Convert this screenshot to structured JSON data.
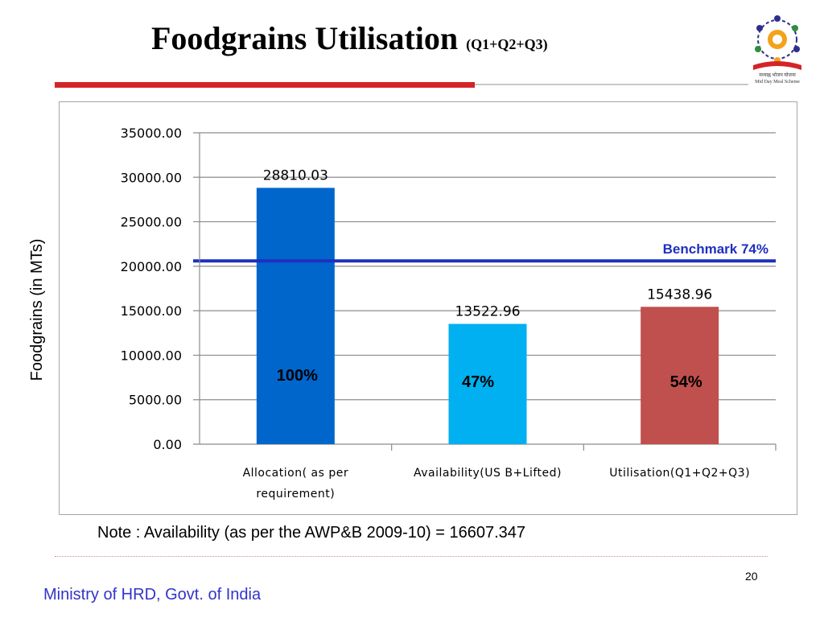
{
  "slide": {
    "title": "Foodgrains Utilisation",
    "title_sub": "(Q1+Q2+Q3)",
    "note": "Note : Availability (as per the AWP&B 2009-10) = 16607.347",
    "page_number": "20",
    "footer": "Ministry of HRD, Govt. of India",
    "logo": {
      "icon": "mid-day-meal-scheme-logo",
      "caption_line1": "मध्याह्न भोजन योजना",
      "caption_line2": "Mid Day Meal Scheme"
    },
    "colors": {
      "accent_red": "#d42427",
      "footer_blue": "#3333cc",
      "benchmark_blue": "#1f2fbf"
    }
  },
  "chart_data": {
    "type": "bar",
    "ylabel": "Foodgrains (in MTs)",
    "ylim": [
      0,
      35000
    ],
    "yticks": [
      "0.00",
      "5000.00",
      "10000.00",
      "15000.00",
      "20000.00",
      "25000.00",
      "30000.00",
      "35000.00"
    ],
    "grid": true,
    "categories": [
      [
        "Allocation( as per",
        "requirement)"
      ],
      [
        "Availability(US B+Lifted)"
      ],
      [
        "Utilisation(Q1+Q2+Q3)"
      ]
    ],
    "values": [
      28810.03,
      13522.96,
      15438.96
    ],
    "value_labels": [
      "28810.03",
      "13522.96",
      "15438.96"
    ],
    "percent_labels": [
      "100%",
      "47%",
      "54%"
    ],
    "bar_colors": [
      "#0066cc",
      "#00b0f0",
      "#c0504d"
    ],
    "benchmark": {
      "label": "Benchmark 74%",
      "value": 20600,
      "color": "#1f2fbf"
    }
  }
}
